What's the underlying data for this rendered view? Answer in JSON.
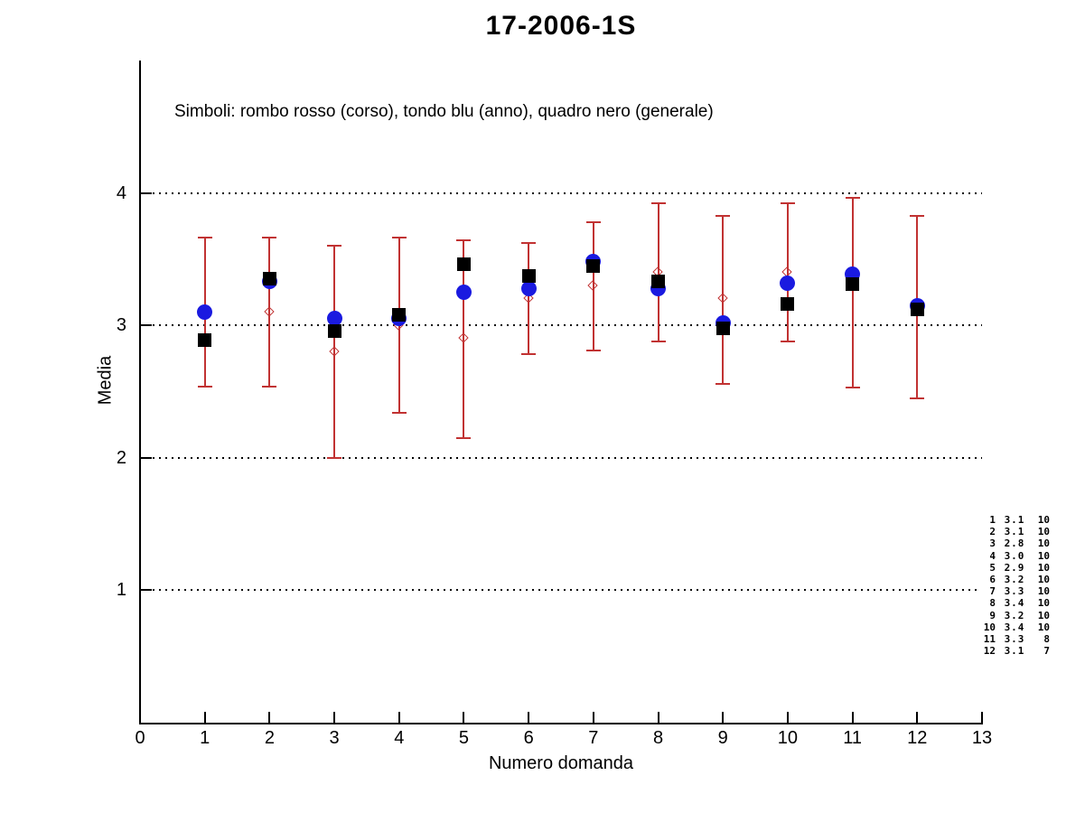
{
  "page": {
    "background": "#ffffff"
  },
  "header": {
    "title": "17-2006-1S"
  },
  "legend_note": "Simboli: rombo rosso (corso), tondo blu (anno), quadro nero (generale)",
  "colors": {
    "red": "#c13232",
    "blue": "#1a1ae0",
    "black": "#000000"
  },
  "chart_data": {
    "type": "scatter",
    "title": "17-2006-1S",
    "xlabel": "Numero domanda",
    "ylabel": "Media",
    "xlim": [
      0,
      13
    ],
    "ylim": [
      0,
      5
    ],
    "xticks": [
      0,
      1,
      2,
      3,
      4,
      5,
      6,
      7,
      8,
      9,
      10,
      11,
      12,
      13
    ],
    "yticks": [
      4,
      3,
      2,
      1
    ],
    "grid": "horizontal-dotted-at-yticks",
    "legend_position": "text-note-top-left",
    "categories": [
      1,
      2,
      3,
      4,
      5,
      6,
      7,
      8,
      9,
      10,
      11,
      12
    ],
    "series": [
      {
        "name": "corso",
        "marker": "open-diamond",
        "color": "#c13232",
        "values": [
          3.1,
          3.1,
          2.8,
          3.0,
          2.9,
          3.2,
          3.3,
          3.4,
          3.2,
          3.4,
          3.3,
          3.1
        ],
        "err_low": [
          2.54,
          2.54,
          2.0,
          2.34,
          2.15,
          2.78,
          2.81,
          2.88,
          2.56,
          2.88,
          2.53,
          2.45
        ],
        "err_high": [
          3.66,
          3.66,
          3.6,
          3.66,
          3.64,
          3.62,
          3.78,
          3.92,
          3.83,
          3.92,
          3.96,
          3.83
        ]
      },
      {
        "name": "anno",
        "marker": "filled-circle",
        "color": "#1a1ae0",
        "values": [
          3.1,
          3.33,
          3.05,
          3.05,
          3.25,
          3.28,
          3.48,
          3.28,
          3.02,
          3.32,
          3.39,
          3.15
        ]
      },
      {
        "name": "generale",
        "marker": "filled-square",
        "color": "#000000",
        "values": [
          2.89,
          3.35,
          2.96,
          3.08,
          3.46,
          3.37,
          3.45,
          3.33,
          2.98,
          3.16,
          3.31,
          3.12
        ]
      }
    ],
    "annotation_table": {
      "rows": [
        [
          "1",
          "3.1",
          "10"
        ],
        [
          "2",
          "3.1",
          "10"
        ],
        [
          "3",
          "2.8",
          "10"
        ],
        [
          "4",
          "3.0",
          "10"
        ],
        [
          "5",
          "2.9",
          "10"
        ],
        [
          "6",
          "3.2",
          "10"
        ],
        [
          "7",
          "3.3",
          "10"
        ],
        [
          "8",
          "3.4",
          "10"
        ],
        [
          "9",
          "3.2",
          "10"
        ],
        [
          "10",
          "3.4",
          "10"
        ],
        [
          "11",
          "3.3",
          "8"
        ],
        [
          "12",
          "3.1",
          "7"
        ]
      ]
    }
  }
}
